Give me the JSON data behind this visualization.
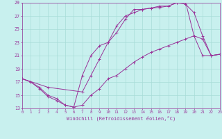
{
  "xlabel": "Windchill (Refroidissement éolien,°C)",
  "xlim": [
    0,
    23
  ],
  "ylim": [
    13,
    29
  ],
  "xtick_vals": [
    0,
    1,
    2,
    3,
    4,
    5,
    6,
    7,
    8,
    9,
    10,
    11,
    12,
    13,
    14,
    15,
    16,
    17,
    18,
    19,
    20,
    21,
    22,
    23
  ],
  "ytick_vals": [
    13,
    15,
    17,
    19,
    21,
    23,
    25,
    27,
    29
  ],
  "bg_color": "#c8f0ee",
  "grid_color": "#a8dcd8",
  "line_color": "#993399",
  "line1_x": [
    0,
    1,
    2,
    3,
    4,
    5,
    6,
    7,
    8,
    9,
    10,
    11,
    12,
    13,
    14,
    15,
    16,
    17,
    18,
    19,
    20,
    21,
    22,
    23
  ],
  "line1_y": [
    17.5,
    17.0,
    16.0,
    14.8,
    14.2,
    13.5,
    13.2,
    13.5,
    15.0,
    16.0,
    17.5,
    18.0,
    19.0,
    20.0,
    20.8,
    21.5,
    22.0,
    22.5,
    23.0,
    23.5,
    24.0,
    21.0,
    21.0,
    21.2
  ],
  "line2_x": [
    0,
    1,
    2,
    3,
    4,
    5,
    6,
    7,
    8,
    9,
    10,
    11,
    12,
    13,
    14,
    15,
    16,
    17,
    18,
    19,
    20,
    21,
    22,
    23
  ],
  "line2_y": [
    17.5,
    17.0,
    16.2,
    15.0,
    14.5,
    13.5,
    13.2,
    18.0,
    21.0,
    22.5,
    23.0,
    25.5,
    27.0,
    27.5,
    28.0,
    28.2,
    28.5,
    28.5,
    29.0,
    29.2,
    24.0,
    23.5,
    21.0,
    21.2
  ],
  "line3_x": [
    0,
    3,
    7,
    8,
    9,
    10,
    11,
    12,
    13,
    14,
    15,
    16,
    17,
    18,
    19,
    20,
    21,
    22,
    23
  ],
  "line3_y": [
    17.5,
    16.2,
    15.5,
    18.0,
    20.5,
    23.0,
    24.5,
    26.5,
    28.0,
    28.0,
    28.2,
    28.3,
    28.5,
    29.0,
    28.8,
    27.5,
    24.0,
    21.0,
    21.2
  ]
}
